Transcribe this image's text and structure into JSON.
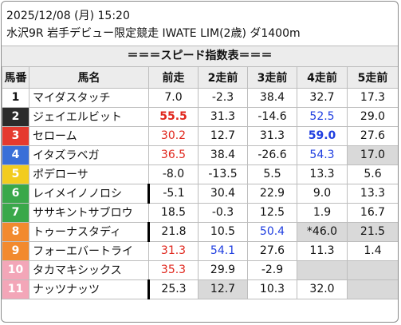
{
  "header": {
    "line1": "2025/12/08 (月) 15:20",
    "line2": "水沢9R 岩手デビュー限定競走 IWATE LIM(2歳) ダ1400m"
  },
  "banner": "＝＝＝スピード指数表＝＝＝",
  "columns": [
    "馬番",
    "馬名",
    "前走",
    "2走前",
    "3走前",
    "4走前",
    "5走前"
  ],
  "colors": {
    "red_value": "#e0261c",
    "blue_value": "#1f3ee0",
    "gray_cell": "#d9d9d9"
  },
  "rows": [
    {
      "num": "1",
      "num_bg": "#ffffff",
      "num_color": "#111111",
      "name": "マイダスタッチ",
      "name_marked": false,
      "cells": [
        {
          "v": "7.0"
        },
        {
          "v": "-2.3"
        },
        {
          "v": "38.4"
        },
        {
          "v": "32.7"
        },
        {
          "v": "17.3"
        }
      ]
    },
    {
      "num": "2",
      "num_bg": "#2b2b2b",
      "num_color": "#ffffff",
      "name": "ジェイエルビット",
      "name_marked": false,
      "cells": [
        {
          "v": "55.5",
          "c": "red",
          "b": true
        },
        {
          "v": "31.3"
        },
        {
          "v": "-14.6"
        },
        {
          "v": "52.5",
          "c": "blue"
        },
        {
          "v": "29.0"
        }
      ]
    },
    {
      "num": "3",
      "num_bg": "#e53a2f",
      "num_color": "#ffffff",
      "name": "セローム",
      "name_marked": false,
      "cells": [
        {
          "v": "30.2",
          "c": "red"
        },
        {
          "v": "12.7"
        },
        {
          "v": "31.3"
        },
        {
          "v": "59.0",
          "c": "blue",
          "b": true
        },
        {
          "v": "27.6"
        }
      ]
    },
    {
      "num": "4",
      "num_bg": "#3a6fd8",
      "num_color": "#ffffff",
      "name": "イタズラベガ",
      "name_marked": false,
      "cells": [
        {
          "v": "36.5",
          "c": "red"
        },
        {
          "v": "38.4"
        },
        {
          "v": "-26.6"
        },
        {
          "v": "54.3",
          "c": "blue"
        },
        {
          "v": "17.0",
          "g": true
        }
      ]
    },
    {
      "num": "5",
      "num_bg": "#f2cc1f",
      "num_color": "#ffffff",
      "name": "ポデローサ",
      "name_marked": false,
      "cells": [
        {
          "v": "-8.0"
        },
        {
          "v": "-13.5"
        },
        {
          "v": "5.5"
        },
        {
          "v": "13.3"
        },
        {
          "v": "5.6"
        }
      ]
    },
    {
      "num": "6",
      "num_bg": "#3aa84a",
      "num_color": "#ffffff",
      "name": "レイメイノノロシ",
      "name_marked": true,
      "cells": [
        {
          "v": "-5.1"
        },
        {
          "v": "30.4"
        },
        {
          "v": "22.9"
        },
        {
          "v": "9.0"
        },
        {
          "v": "13.3"
        }
      ]
    },
    {
      "num": "7",
      "num_bg": "#3aa84a",
      "num_color": "#ffffff",
      "name": "ササキントサブロウ",
      "name_marked": false,
      "cells": [
        {
          "v": "18.5"
        },
        {
          "v": "-0.3"
        },
        {
          "v": "12.5"
        },
        {
          "v": "1.9"
        },
        {
          "v": "16.7"
        }
      ]
    },
    {
      "num": "8",
      "num_bg": "#f28a2e",
      "num_color": "#ffffff",
      "name": "トゥーナスタディ",
      "name_marked": true,
      "cells": [
        {
          "v": "21.8"
        },
        {
          "v": "10.5"
        },
        {
          "v": "50.4",
          "c": "blue"
        },
        {
          "v": "*46.0",
          "g": true
        },
        {
          "v": "21.5",
          "g": true
        }
      ]
    },
    {
      "num": "9",
      "num_bg": "#f28a2e",
      "num_color": "#ffffff",
      "name": "フォーエバートライ",
      "name_marked": false,
      "cells": [
        {
          "v": "31.3",
          "c": "red"
        },
        {
          "v": "54.1",
          "c": "blue"
        },
        {
          "v": "27.6"
        },
        {
          "v": "11.3"
        },
        {
          "v": "1.4"
        }
      ]
    },
    {
      "num": "10",
      "num_bg": "#f3a6b8",
      "num_color": "#ffffff",
      "name": "タカマキシックス",
      "name_marked": false,
      "cells": [
        {
          "v": "35.3",
          "c": "red"
        },
        {
          "v": "29.9"
        },
        {
          "v": "-2.9"
        },
        {
          "v": "",
          "g": true
        },
        {
          "v": "",
          "g": true
        }
      ]
    },
    {
      "num": "11",
      "num_bg": "#f3a6b8",
      "num_color": "#ffffff",
      "name": "ナッツナッツ",
      "name_marked": true,
      "cells": [
        {
          "v": "25.3"
        },
        {
          "v": "12.7",
          "g": true
        },
        {
          "v": "10.3"
        },
        {
          "v": "32.0"
        },
        {
          "v": "",
          "g": true
        }
      ]
    }
  ]
}
